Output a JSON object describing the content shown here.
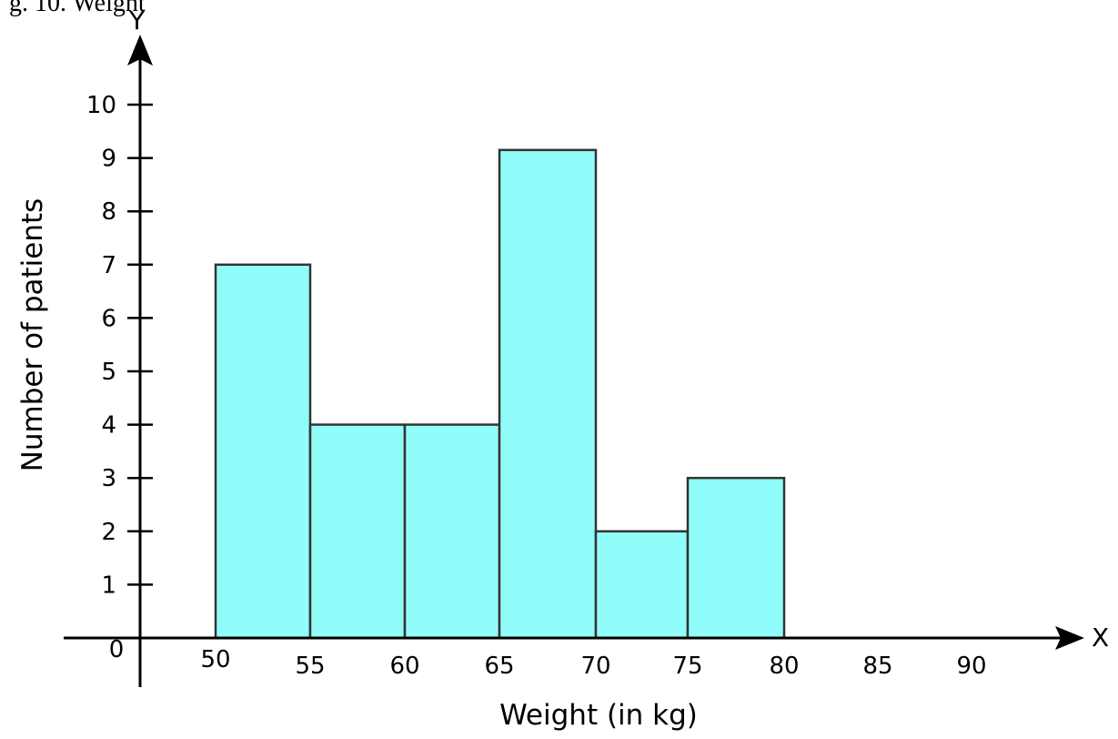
{
  "header_fragment": "g. 10. Weight",
  "chart_data": {
    "type": "bar",
    "subtype": "histogram",
    "bins": [
      {
        "from": 50,
        "to": 55,
        "value": 7
      },
      {
        "from": 55,
        "to": 60,
        "value": 4
      },
      {
        "from": 60,
        "to": 65,
        "value": 4
      },
      {
        "from": 65,
        "to": 70,
        "value": 9.15
      },
      {
        "from": 70,
        "to": 75,
        "value": 2
      },
      {
        "from": 75,
        "to": 80,
        "value": 3
      }
    ],
    "categories": [
      "50-55",
      "55-60",
      "60-65",
      "65-70",
      "70-75",
      "75-80"
    ],
    "values": [
      7,
      4,
      4,
      9.15,
      2,
      3
    ],
    "x_ticks": [
      "50",
      "55",
      "60",
      "65",
      "70",
      "75",
      "80",
      "85",
      "90"
    ],
    "y_ticks": [
      "1",
      "2",
      "3",
      "4",
      "5",
      "6",
      "7",
      "8",
      "9",
      "10"
    ],
    "origin_label": "0",
    "x_axis_letter": "X",
    "y_axis_letter": "Y",
    "xlabel": "Weight (in kg)",
    "ylabel": "Number of patients",
    "ylim": [
      0,
      10
    ],
    "grid": false,
    "colors": {
      "bar_fill": "#91fdfa",
      "bar_stroke": "#333333",
      "axis": "#000000"
    }
  }
}
